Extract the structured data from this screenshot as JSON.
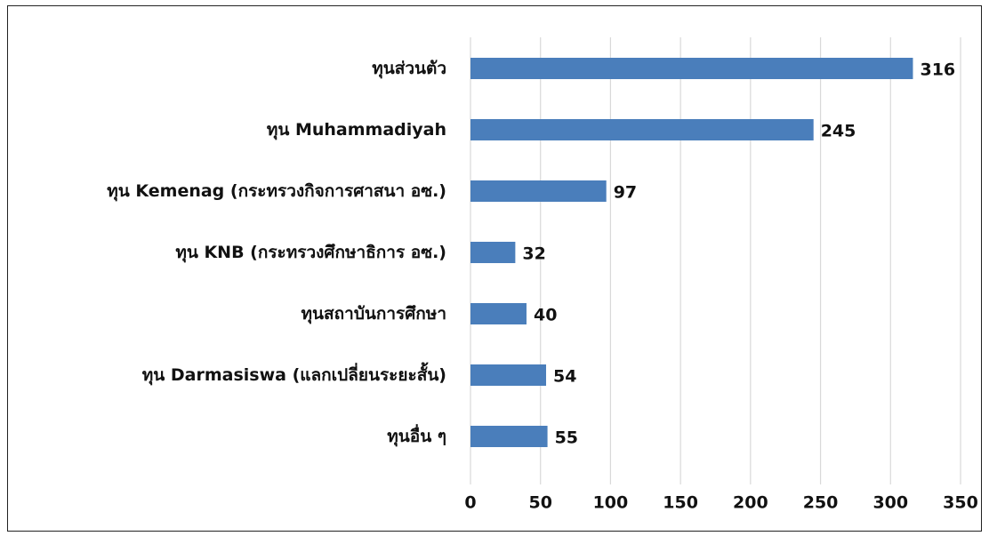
{
  "chart_data": {
    "type": "bar",
    "orientation": "horizontal",
    "categories": [
      "ทุนส่วนตัว",
      "ทุน Muhammadiyah",
      "ทุน Kemenag (กระทรวงกิจการศาสนา อซ.)",
      "ทุน KNB (กระทรวงศึกษาธิการ อซ.)",
      "ทุนสถาบันการศึกษา",
      "ทุน Darmasiswa (แลกเปลี่ยนระยะสั้น)",
      "ทุนอื่น ๆ"
    ],
    "values": [
      316,
      245,
      97,
      32,
      40,
      54,
      55
    ],
    "color": "#4a7ebb",
    "xlim": [
      0,
      350
    ],
    "xticks": [
      0,
      50,
      100,
      150,
      200,
      250,
      300,
      350
    ],
    "grid": true
  }
}
